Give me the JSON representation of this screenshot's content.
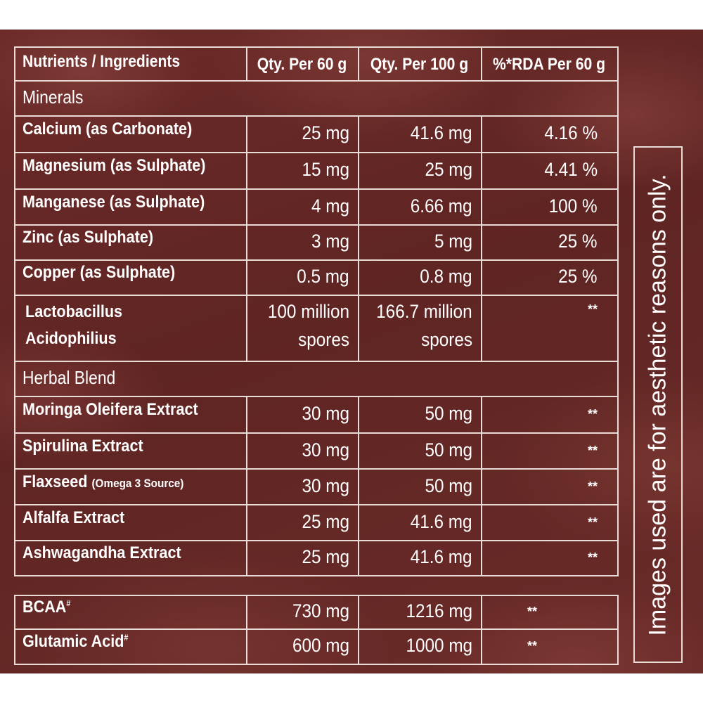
{
  "header": {
    "col1": "Nutrients / Ingredients",
    "col2": "Qty. Per 60 g",
    "col3": "Qty. Per 100 g",
    "col4": "%*RDA Per 60 g"
  },
  "sections": {
    "minerals": "Minerals",
    "herbal": "Herbal Blend"
  },
  "minerals": [
    {
      "name": "Calcium (as Carbonate)",
      "q60": "25 mg",
      "q100": "41.6 mg",
      "rda": "4.16 %"
    },
    {
      "name": "Magnesium (as Sulphate)",
      "q60": "15 mg",
      "q100": "25 mg",
      "rda": "4.41 %"
    },
    {
      "name": "Manganese (as Sulphate)",
      "q60": "4 mg",
      "q100": "6.66 mg",
      "rda": "100 %"
    },
    {
      "name": "Zinc (as Sulphate)",
      "q60": "3 mg",
      "q100": "5 mg",
      "rda": "25 %"
    },
    {
      "name": "Copper (as Sulphate)",
      "q60": "0.5 mg",
      "q100": "0.8 mg",
      "rda": "25 %"
    }
  ],
  "lacto": {
    "name1": "Lactobacillus",
    "name2": "Acidophilius",
    "q60a": "100 million",
    "q60b": "spores",
    "q100a": "166.7 million",
    "q100b": "spores",
    "rda": "**"
  },
  "herbal": [
    {
      "name": "Moringa Oleifera Extract",
      "q60": "30 mg",
      "q100": "50 mg",
      "rda": "**"
    },
    {
      "name": "Spirulina Extract",
      "q60": "30 mg",
      "q100": "50 mg",
      "rda": "**"
    },
    {
      "name": "Flaxseed",
      "sub": "(Omega 3 Source)",
      "q60": "30 mg",
      "q100": "50 mg",
      "rda": "**"
    },
    {
      "name": "Alfalfa Extract",
      "q60": "25 mg",
      "q100": "41.6 mg",
      "rda": "**"
    },
    {
      "name": "Ashwagandha Extract",
      "q60": "25 mg",
      "q100": "41.6 mg",
      "rda": "**"
    }
  ],
  "extra": [
    {
      "name": "BCAA",
      "mark": "#",
      "q60": "730 mg",
      "q100": "1216 mg",
      "rda": "**"
    },
    {
      "name": "Glutamic Acid",
      "mark": "#",
      "q60": "600 mg",
      "q100": "1000 mg",
      "rda": "**"
    }
  ],
  "side_note": "Images used are for aesthetic reasons only."
}
